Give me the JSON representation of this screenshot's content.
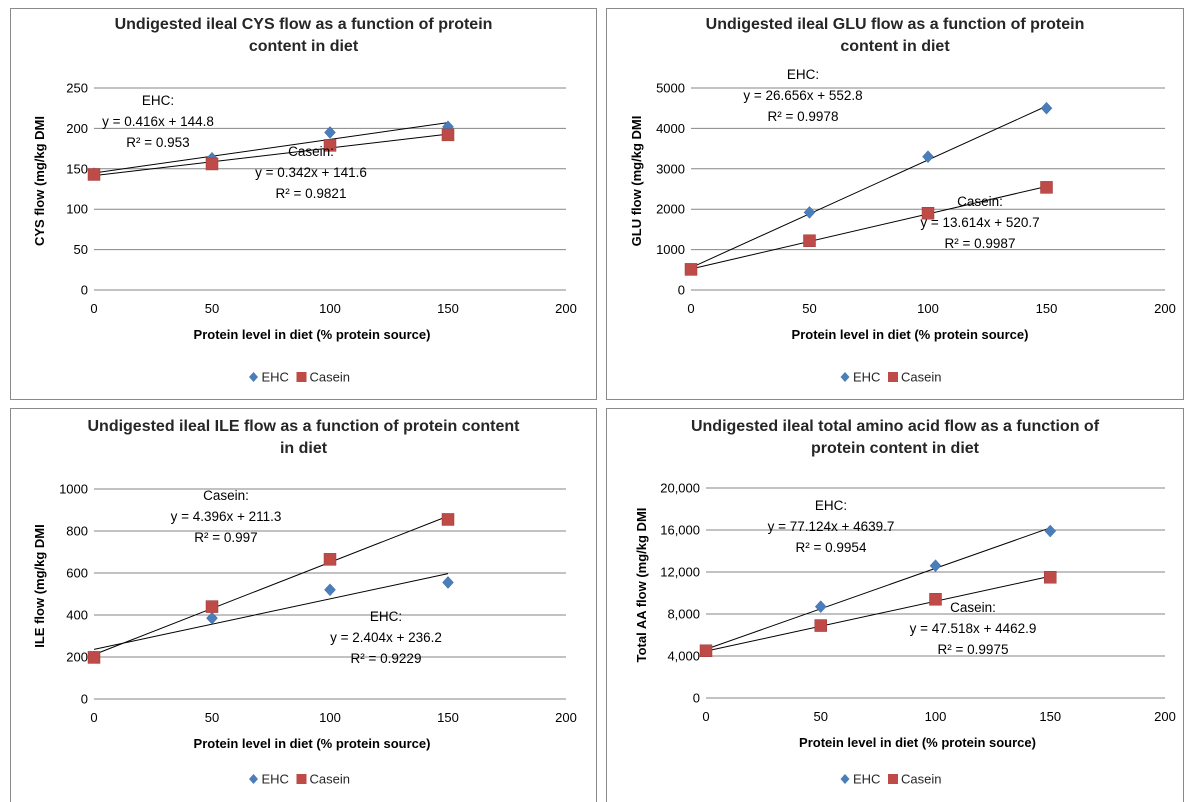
{
  "colors": {
    "ehc": "#4a7ebb",
    "casein": "#be4b48",
    "grid": "#868686",
    "trend": "#000000"
  },
  "chart_data": [
    {
      "type": "scatter",
      "title": [
        "Undigested ileal CYS flow as a function of protein",
        "content in diet"
      ],
      "xlabel": "Protein level in diet (% protein source)",
      "ylabel": "CYS flow (mg/kg DMI",
      "xlim": [
        0,
        200
      ],
      "ylim": [
        0,
        250
      ],
      "xticks": [
        "0",
        "50",
        "100",
        "150",
        "200"
      ],
      "yticks": [
        "0",
        "50",
        "100",
        "150",
        "200",
        "250"
      ],
      "grid": "horizontal",
      "legend_position": "bottom",
      "series": [
        {
          "name": "EHC",
          "marker": "diamond",
          "x": [
            0,
            50,
            100,
            150
          ],
          "y": [
            144,
            163,
            195,
            202
          ],
          "trendline": {
            "slope": 0.416,
            "intercept": 144.8
          }
        },
        {
          "name": "Casein",
          "marker": "square",
          "x": [
            0,
            50,
            100,
            150
          ],
          "y": [
            143,
            156,
            179,
            192
          ],
          "trendline": {
            "slope": 0.342,
            "intercept": 141.6
          }
        }
      ],
      "annotations": [
        [
          "EHC:",
          "y = 0.416x + 144.8",
          "R² = 0.953"
        ],
        [
          "Casein:",
          "y = 0.342x + 141.6",
          "R² = 0.9821"
        ]
      ]
    },
    {
      "type": "scatter",
      "title": [
        "Undigested ileal GLU flow as a function of protein",
        "content in diet"
      ],
      "xlabel": "Protein level in diet (% protein source)",
      "ylabel": "GLU flow (mg/kg DMI",
      "xlim": [
        0,
        200
      ],
      "ylim": [
        0,
        5000
      ],
      "xticks": [
        "0",
        "50",
        "100",
        "150",
        "200"
      ],
      "yticks": [
        "0",
        "1000",
        "2000",
        "3000",
        "4000",
        "5000"
      ],
      "grid": "horizontal",
      "legend_position": "bottom",
      "series": [
        {
          "name": "EHC",
          "marker": "diamond",
          "x": [
            0,
            50,
            100,
            150
          ],
          "y": [
            510,
            1920,
            3300,
            4500
          ],
          "trendline": {
            "slope": 26.656,
            "intercept": 552.8
          }
        },
        {
          "name": "Casein",
          "marker": "square",
          "x": [
            0,
            50,
            100,
            150
          ],
          "y": [
            510,
            1220,
            1900,
            2540
          ],
          "trendline": {
            "slope": 13.614,
            "intercept": 520.7
          }
        }
      ],
      "annotations": [
        [
          "EHC:",
          "y = 26.656x + 552.8",
          "R² = 0.9978"
        ],
        [
          "Casein:",
          "y = 13.614x + 520.7",
          "R² = 0.9987"
        ]
      ]
    },
    {
      "type": "scatter",
      "title": [
        "Undigested ileal ILE flow as a function of protein content",
        "in diet"
      ],
      "xlabel": "Protein level in diet (% protein source)",
      "ylabel": "ILE flow (mg/kg DMI",
      "xlim": [
        0,
        200
      ],
      "ylim": [
        0,
        1000
      ],
      "xticks": [
        "0",
        "50",
        "100",
        "150",
        "200"
      ],
      "yticks": [
        "0",
        "200",
        "400",
        "600",
        "800",
        "1000"
      ],
      "grid": "horizontal",
      "legend_position": "bottom",
      "series": [
        {
          "name": "EHC",
          "marker": "diamond",
          "x": [
            0,
            50,
            100,
            150
          ],
          "y": [
            200,
            385,
            520,
            555
          ],
          "trendline": {
            "slope": 2.404,
            "intercept": 236.2
          }
        },
        {
          "name": "Casein",
          "marker": "square",
          "x": [
            0,
            50,
            100,
            150
          ],
          "y": [
            198,
            440,
            665,
            855
          ],
          "trendline": {
            "slope": 4.396,
            "intercept": 211.3
          }
        }
      ],
      "annotations": [
        [
          "Casein:",
          "y = 4.396x + 211.3",
          "R² = 0.997"
        ],
        [
          "EHC:",
          "y = 2.404x + 236.2",
          "R² = 0.9229"
        ]
      ]
    },
    {
      "type": "scatter",
      "title": [
        "Undigested ileal total amino acid flow as a function of",
        "protein content in diet"
      ],
      "xlabel": "Protein level in diet (% protein source)",
      "ylabel": "Total AA  flow (mg/kg DMI",
      "xlim": [
        0,
        200
      ],
      "ylim": [
        0,
        20000
      ],
      "xticks": [
        "0",
        "50",
        "100",
        "150",
        "200"
      ],
      "yticks": [
        "0",
        "4,000",
        "8,000",
        "12,000",
        "16,000",
        "20,000"
      ],
      "grid": "horizontal",
      "legend_position": "bottom",
      "series": [
        {
          "name": "EHC",
          "marker": "diamond",
          "x": [
            0,
            50,
            100,
            150
          ],
          "y": [
            4500,
            8700,
            12600,
            15900
          ],
          "trendline": {
            "slope": 77.124,
            "intercept": 4639.7
          }
        },
        {
          "name": "Casein",
          "marker": "square",
          "x": [
            0,
            50,
            100,
            150
          ],
          "y": [
            4500,
            6900,
            9400,
            11500
          ],
          "trendline": {
            "slope": 47.518,
            "intercept": 4462.9
          }
        }
      ],
      "annotations": [
        [
          "EHC:",
          "y = 77.124x + 4639.7",
          "R² = 0.9954"
        ],
        [
          "Casein:",
          "y = 47.518x + 4462.9",
          "R² = 0.9975"
        ]
      ]
    }
  ]
}
